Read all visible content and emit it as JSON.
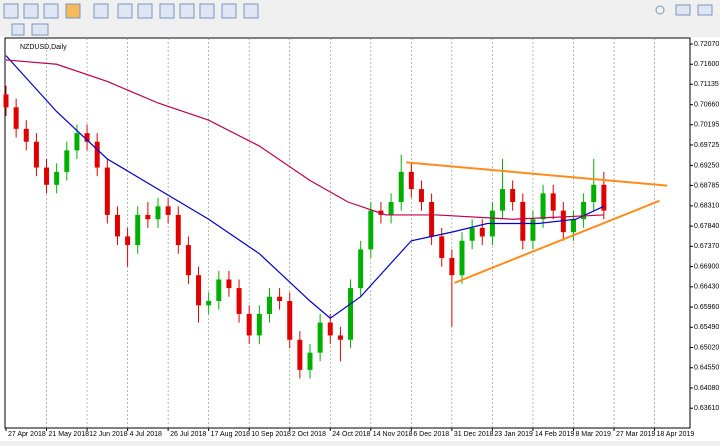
{
  "chart_data": {
    "type": "candlestick",
    "title": "NZDUSD,Daily",
    "x": [
      0,
      4,
      8,
      12,
      16,
      20,
      24,
      28,
      32,
      36,
      40,
      44,
      48,
      52,
      56,
      60,
      64,
      68,
      72,
      76,
      80,
      84,
      88,
      92,
      96,
      100,
      104,
      108,
      112,
      116,
      120,
      124,
      128,
      132,
      136,
      140,
      144,
      148,
      152,
      156,
      160,
      164,
      168,
      172,
      176,
      180,
      184,
      188,
      192,
      196,
      200,
      204,
      208,
      212,
      216,
      220,
      224,
      228,
      232,
      236
    ],
    "open": [
      0.709,
      0.706,
      0.701,
      0.698,
      0.692,
      0.688,
      0.691,
      0.696,
      0.7,
      0.698,
      0.692,
      0.681,
      0.676,
      0.674,
      0.681,
      0.68,
      0.683,
      0.681,
      0.674,
      0.667,
      0.66,
      0.661,
      0.666,
      0.664,
      0.658,
      0.653,
      0.658,
      0.662,
      0.661,
      0.652,
      0.645,
      0.649,
      0.656,
      0.653,
      0.652,
      0.664,
      0.673,
      0.682,
      0.681,
      0.684,
      0.691,
      0.687,
      0.684,
      0.676,
      0.671,
      0.667,
      0.675,
      0.678,
      0.676,
      0.682,
      0.687,
      0.684,
      0.675,
      0.68,
      0.686,
      0.682,
      0.677,
      0.68,
      0.684,
      0.688
    ],
    "high": [
      0.711,
      0.708,
      0.703,
      0.7,
      0.694,
      0.693,
      0.698,
      0.702,
      0.702,
      0.7,
      0.694,
      0.683,
      0.678,
      0.683,
      0.684,
      0.685,
      0.685,
      0.683,
      0.676,
      0.669,
      0.663,
      0.668,
      0.668,
      0.666,
      0.66,
      0.66,
      0.664,
      0.664,
      0.663,
      0.654,
      0.651,
      0.658,
      0.658,
      0.655,
      0.666,
      0.675,
      0.684,
      0.684,
      0.686,
      0.695,
      0.693,
      0.689,
      0.686,
      0.678,
      0.673,
      0.677,
      0.68,
      0.68,
      0.684,
      0.694,
      0.689,
      0.686,
      0.682,
      0.688,
      0.688,
      0.684,
      0.682,
      0.686,
      0.694,
      0.691
    ],
    "low": [
      0.704,
      0.699,
      0.696,
      0.69,
      0.686,
      0.686,
      0.689,
      0.694,
      0.696,
      0.69,
      0.679,
      0.674,
      0.669,
      0.672,
      0.678,
      0.678,
      0.679,
      0.672,
      0.665,
      0.656,
      0.658,
      0.659,
      0.662,
      0.656,
      0.651,
      0.651,
      0.656,
      0.659,
      0.65,
      0.643,
      0.643,
      0.647,
      0.651,
      0.647,
      0.65,
      0.662,
      0.671,
      0.679,
      0.679,
      0.682,
      0.685,
      0.682,
      0.674,
      0.669,
      0.655,
      0.665,
      0.673,
      0.674,
      0.674,
      0.68,
      0.682,
      0.673,
      0.673,
      0.678,
      0.68,
      0.675,
      0.675,
      0.678,
      0.682,
      0.68
    ],
    "close": [
      0.706,
      0.701,
      0.698,
      0.692,
      0.688,
      0.691,
      0.696,
      0.7,
      0.698,
      0.692,
      0.681,
      0.676,
      0.674,
      0.681,
      0.68,
      0.683,
      0.681,
      0.674,
      0.667,
      0.66,
      0.661,
      0.666,
      0.664,
      0.658,
      0.653,
      0.658,
      0.662,
      0.661,
      0.652,
      0.645,
      0.649,
      0.656,
      0.653,
      0.652,
      0.664,
      0.673,
      0.682,
      0.681,
      0.684,
      0.691,
      0.687,
      0.684,
      0.676,
      0.671,
      0.667,
      0.675,
      0.678,
      0.676,
      0.682,
      0.687,
      0.684,
      0.675,
      0.68,
      0.686,
      0.682,
      0.677,
      0.68,
      0.684,
      0.688,
      0.682
    ],
    "up_color": "#00b000",
    "down_color": "#e00000",
    "moving_averages": [
      {
        "color": "#0000cc",
        "x": [
          0,
          20,
          40,
          60,
          80,
          100,
          120,
          128,
          140,
          160,
          176,
          190,
          210,
          225,
          236
        ],
        "values": [
          0.718,
          0.705,
          0.694,
          0.687,
          0.68,
          0.672,
          0.661,
          0.657,
          0.662,
          0.675,
          0.677,
          0.679,
          0.679,
          0.68,
          0.683
        ]
      },
      {
        "color": "#c00050",
        "x": [
          0,
          20,
          40,
          60,
          80,
          100,
          120,
          135,
          150,
          170,
          200,
          236
        ],
        "values": [
          0.717,
          0.716,
          0.712,
          0.707,
          0.703,
          0.697,
          0.689,
          0.684,
          0.681,
          0.681,
          0.68,
          0.681
        ]
      }
    ],
    "trendlines": [
      {
        "color": "#ff8c1a",
        "x": [
          158,
          261
        ],
        "values": [
          0.6932,
          0.6878
        ]
      },
      {
        "color": "#ff8c1a",
        "x": [
          177,
          258
        ],
        "values": [
          0.6652,
          0.6843
        ]
      }
    ],
    "xlim": [
      0,
      270
    ],
    "xticks": [
      {
        "value": 0,
        "label": "27 Apr 2018"
      },
      {
        "value": 16,
        "label": "21 May 2018"
      },
      {
        "value": 32,
        "label": "12 Jun 2018"
      },
      {
        "value": 48,
        "label": "4 Jul 2018"
      },
      {
        "value": 64,
        "label": "26 Jul 2018"
      },
      {
        "value": 80,
        "label": "17 Aug 2018"
      },
      {
        "value": 96,
        "label": "10 Sep 2018"
      },
      {
        "value": 112,
        "label": "2 Oct 2018"
      },
      {
        "value": 128,
        "label": "24 Oct 2018"
      },
      {
        "value": 144,
        "label": "14 Nov 2018"
      },
      {
        "value": 160,
        "label": "6 Dec 2018"
      },
      {
        "value": 176,
        "label": "31 Dec 2018"
      },
      {
        "value": 192,
        "label": "23 Jan 2019"
      },
      {
        "value": 208,
        "label": "14 Feb 2019"
      },
      {
        "value": 224,
        "label": "8 Mar 2019"
      },
      {
        "value": 240,
        "label": "27 Mar 2019"
      },
      {
        "value": 256,
        "label": "18 Apr 2019"
      }
    ],
    "ylim": [
      0.6315,
      0.7221
    ],
    "yticks": [
      {
        "value": 0.7207,
        "label": "0.72070"
      },
      {
        "value": 0.716,
        "label": "0.71600"
      },
      {
        "value": 0.71135,
        "label": "0.71135"
      },
      {
        "value": 0.7066,
        "label": "0.70660"
      },
      {
        "value": 0.70195,
        "label": "0.70195"
      },
      {
        "value": 0.69725,
        "label": "0.69725"
      },
      {
        "value": 0.6925,
        "label": "0.69250"
      },
      {
        "value": 0.68785,
        "label": "0.68785"
      },
      {
        "value": 0.6831,
        "label": "0.68310"
      },
      {
        "value": 0.6784,
        "label": "0.67840"
      },
      {
        "value": 0.6737,
        "label": "0.67370"
      },
      {
        "value": 0.669,
        "label": "0.66900"
      },
      {
        "value": 0.6643,
        "label": "0.66430"
      },
      {
        "value": 0.6596,
        "label": "0.65960"
      },
      {
        "value": 0.6549,
        "label": "0.65490"
      },
      {
        "value": 0.6502,
        "label": "0.65020"
      },
      {
        "value": 0.6455,
        "label": "0.64550"
      },
      {
        "value": 0.6408,
        "label": "0.64080"
      },
      {
        "value": 0.6361,
        "label": "0.63610"
      }
    ],
    "grid": true
  }
}
